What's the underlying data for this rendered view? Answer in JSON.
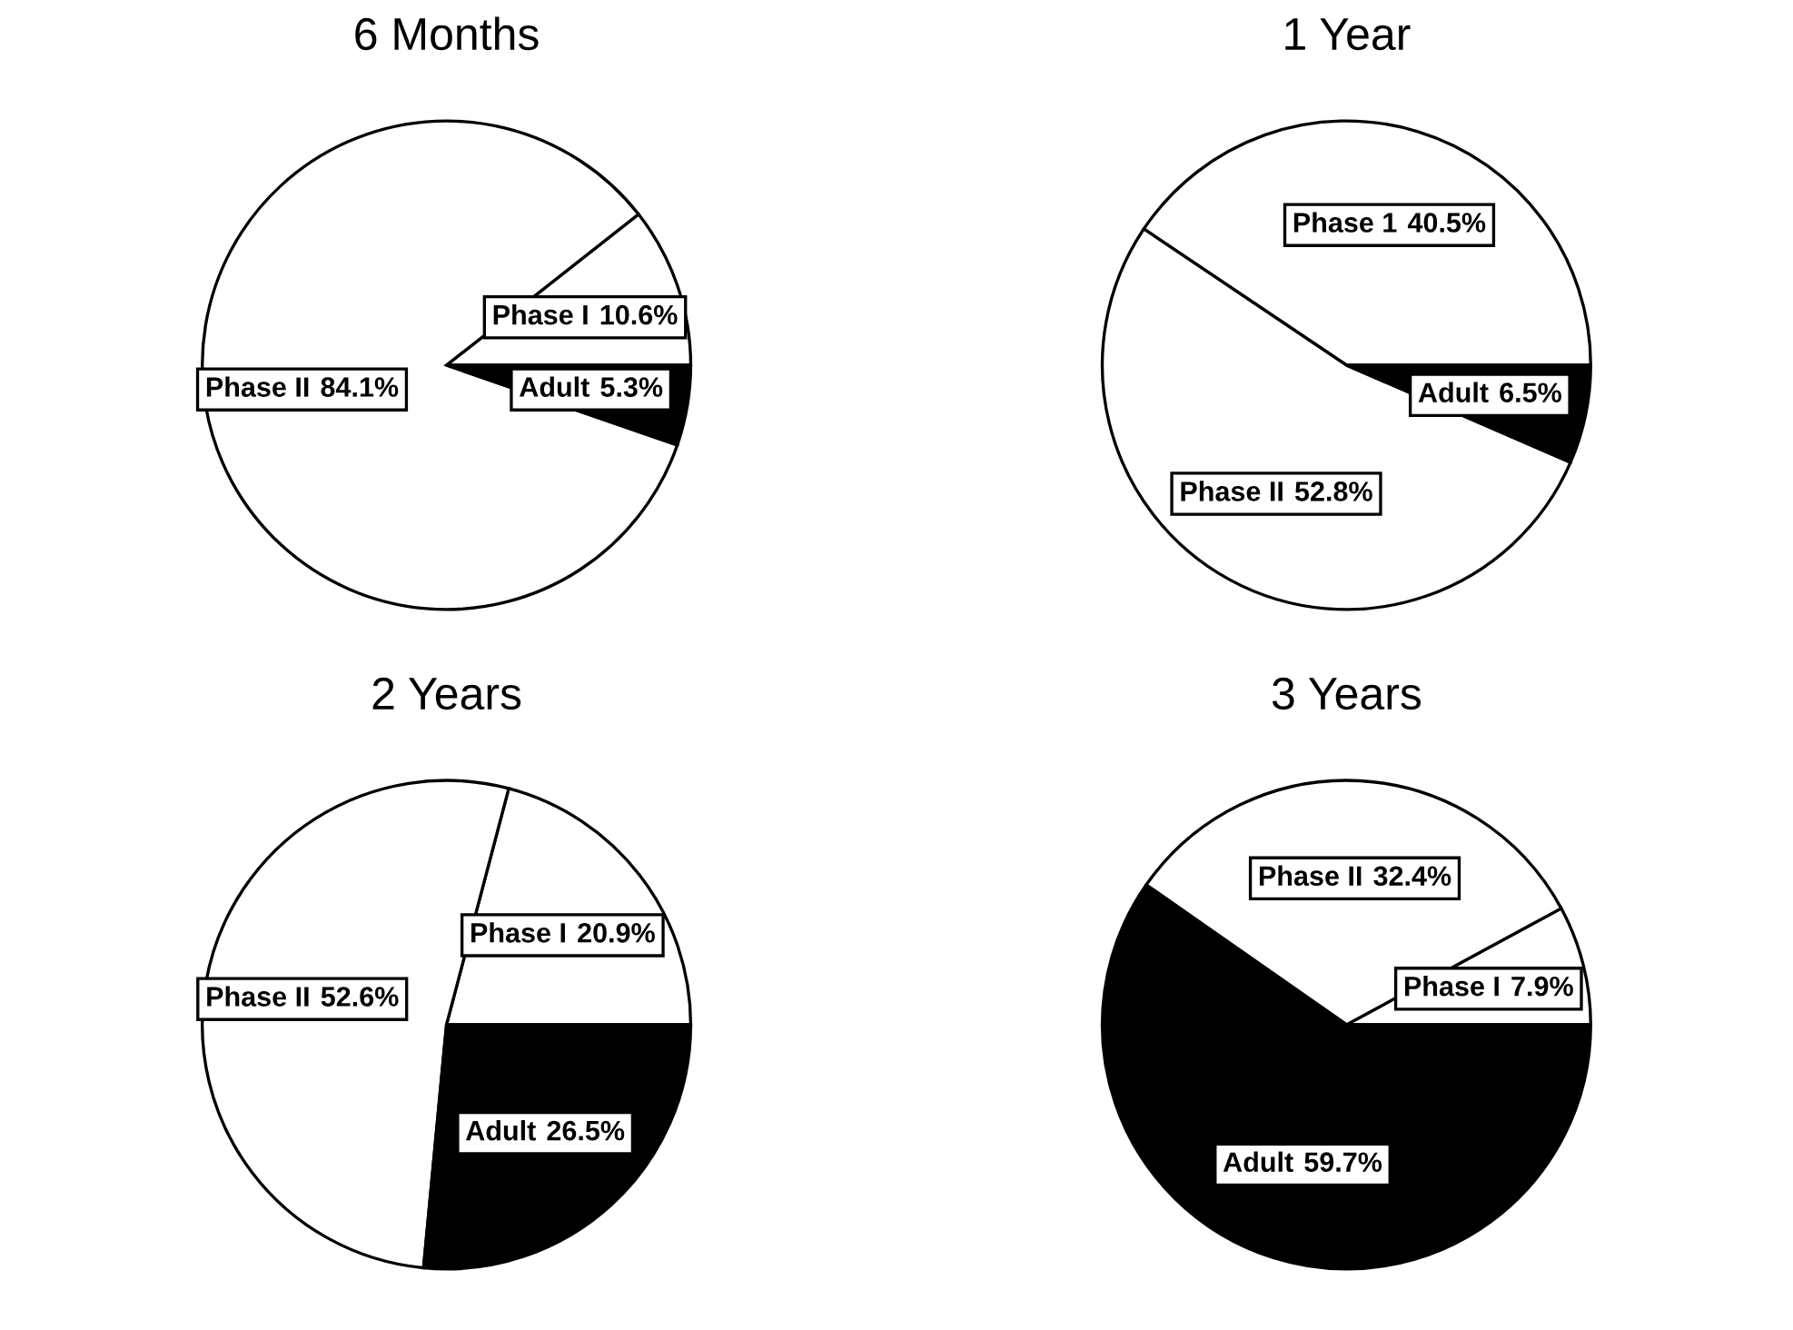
{
  "chart_data": [
    {
      "type": "pie",
      "title": "6 Months",
      "categories": [
        "Phase I",
        "Phase II",
        "Adult"
      ],
      "values": [
        10.6,
        84.1,
        5.3
      ],
      "value_labels": [
        "10.6%",
        "84.1%",
        "5.3%"
      ],
      "colors": [
        "#ffffff",
        "#ffffff",
        "#000000"
      ]
    },
    {
      "type": "pie",
      "title": "1 Year",
      "categories": [
        "Phase 1",
        "Phase II",
        "Adult"
      ],
      "values": [
        40.5,
        52.8,
        6.5
      ],
      "value_labels": [
        "40.5%",
        "52.8%",
        "6.5%"
      ],
      "colors": [
        "#ffffff",
        "#ffffff",
        "#000000"
      ]
    },
    {
      "type": "pie",
      "title": "2 Years",
      "categories": [
        "Phase I",
        "Phase II",
        "Adult"
      ],
      "values": [
        20.9,
        52.6,
        26.5
      ],
      "value_labels": [
        "20.9%",
        "52.6%",
        "26.5%"
      ],
      "colors": [
        "#ffffff",
        "#ffffff",
        "#000000"
      ]
    },
    {
      "type": "pie",
      "title": "3 Years",
      "categories": [
        "Phase I",
        "Phase II",
        "Adult"
      ],
      "values": [
        7.9,
        32.4,
        59.7
      ],
      "value_labels": [
        "7.9%",
        "32.4%",
        "59.7%"
      ],
      "colors": [
        "#ffffff",
        "#ffffff",
        "#000000"
      ]
    }
  ]
}
